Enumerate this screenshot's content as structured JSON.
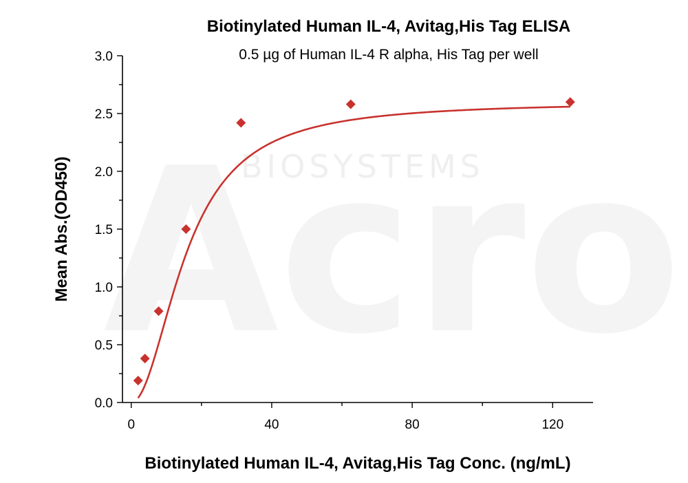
{
  "chart_data": {
    "type": "scatter",
    "title": "Biotinylated Human IL-4, Avitag,His Tag ELISA",
    "subtitle": "0.5 µg of Human IL-4 R alpha, His Tag per well",
    "xlabel": "Biotinylated Human IL-4, Avitag,His Tag Conc. (ng/mL)",
    "ylabel": "Mean Abs.(OD450)",
    "xlim": [
      -2.5,
      131.5
    ],
    "ylim": [
      0,
      3.0
    ],
    "x_ticks": [
      0,
      40,
      80,
      120
    ],
    "x_tick_labels": [
      "0",
      "40",
      "80",
      "120"
    ],
    "x_minor_ticks": [
      20,
      60,
      100
    ],
    "y_ticks": [
      0.0,
      0.5,
      1.0,
      1.5,
      2.0,
      2.5,
      3.0
    ],
    "y_tick_labels": [
      "0.0",
      "0.5",
      "1.0",
      "1.5",
      "2.0",
      "2.5",
      "3.0"
    ],
    "grid": false,
    "series": [
      {
        "marker": "diamond",
        "color": "#c8322e",
        "x": [
          1.95,
          3.9,
          7.8,
          15.6,
          31.25,
          62.5,
          125
        ],
        "y": [
          0.19,
          0.38,
          0.79,
          1.5,
          2.42,
          2.58,
          2.6
        ]
      }
    ],
    "fit_curve": {
      "color": "#c8322e",
      "model": "four-parameter-logistic",
      "bottom": 0.0,
      "top": 2.6,
      "ec50": 15.8,
      "hill": 2.0,
      "x_range": [
        1.95,
        125
      ]
    }
  },
  "watermark": {
    "text_large": "Acro",
    "text_small": "BIOSYSTEMS"
  }
}
